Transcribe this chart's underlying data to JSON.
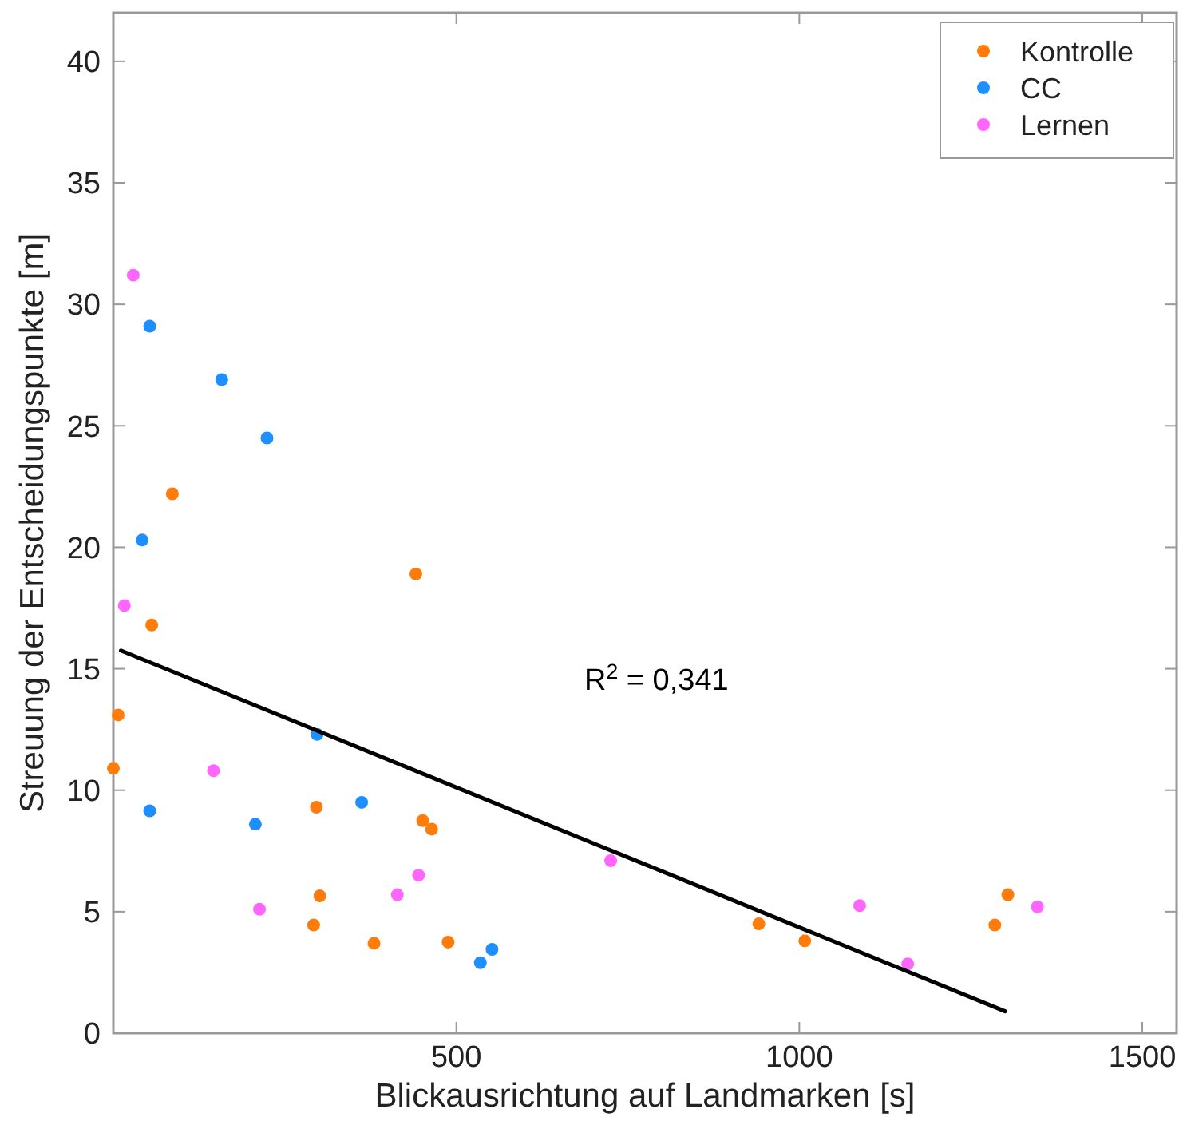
{
  "chart_data": {
    "type": "scatter",
    "xlabel": "Blickausrichtung auf Landmarken [s]",
    "ylabel": "Streuung der Entscheidungspunkte [m]",
    "annotations": [
      "R$^{2}$ = 0,341"
    ],
    "series": [
      {
        "name": "Kontrolle",
        "color": "#ff7c0a",
        "x": [
          0,
          7,
          56,
          86,
          441,
          296,
          301,
          292,
          380,
          451,
          464,
          488,
          941,
          1008,
          1285,
          1304
        ],
        "values": [
          10.9,
          13.1,
          16.8,
          22.2,
          18.9,
          9.3,
          5.65,
          4.45,
          3.7,
          8.75,
          8.4,
          3.75,
          4.5,
          3.8,
          4.45,
          5.7
        ]
      },
      {
        "name": "CC",
        "color": "#1e8fff",
        "x": [
          53,
          158,
          224,
          42,
          297,
          53,
          207,
          362,
          535,
          552
        ],
        "values": [
          29.1,
          26.9,
          24.5,
          20.3,
          12.3,
          9.15,
          8.6,
          9.5,
          2.9,
          3.45
        ]
      },
      {
        "name": "Lernen",
        "color": "#ff66ff",
        "x": [
          29,
          16,
          146,
          213,
          414,
          445,
          725,
          1088,
          1158,
          1347
        ],
        "values": [
          31.2,
          17.6,
          10.8,
          5.1,
          5.7,
          6.5,
          7.1,
          5.25,
          2.85,
          5.2
        ]
      },
      {
        "type": "line",
        "marker": "none",
        "color": "#000000",
        "x": [
          11,
          1300
        ],
        "values": [
          15.75,
          0.9
        ]
      }
    ],
    "xlim": [
      0,
      1550
    ],
    "ylim": [
      0,
      42
    ],
    "xticks": [
      500,
      1000,
      1500
    ],
    "yticks": [
      0,
      5,
      10,
      15,
      20,
      25,
      30,
      35,
      40
    ],
    "legend": "top right",
    "marker": "circle",
    "grid": false
  }
}
